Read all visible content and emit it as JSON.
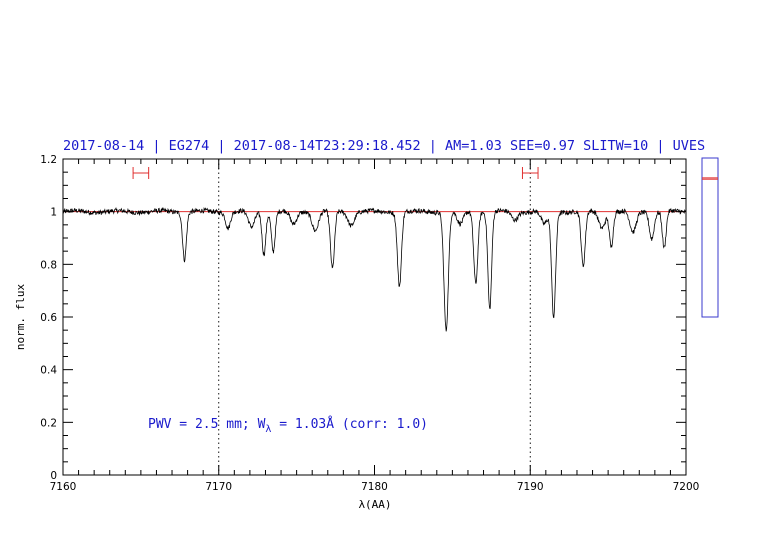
{
  "chart_data": {
    "type": "line",
    "title": "2017-08-14 | EG274 | 2017-08-14T23:29:18.452 | AM=1.03 SEE=0.97 SLITW=10 | UVES",
    "xlabel": "λ(AA)",
    "ylabel": "norm. flux",
    "xlim": [
      7160,
      7200
    ],
    "ylim": [
      0,
      1.2
    ],
    "xticks": [
      7160,
      7170,
      7180,
      7190,
      7200
    ],
    "xtick_labels": [
      "7160",
      "7170",
      "7180",
      "7190",
      "7200"
    ],
    "yticks": [
      0,
      0.2,
      0.4,
      0.6,
      0.8,
      1.0,
      1.2
    ],
    "ytick_labels": [
      "0",
      "0.2",
      "0.4",
      "0.6",
      "0.8",
      "1",
      "1.2"
    ],
    "grid": false,
    "vertical_dotted_lines": [
      7170,
      7190
    ],
    "continuum_level": 1.0,
    "continuum_intervals": [
      [
        7164.5,
        7165.5
      ],
      [
        7189.5,
        7190.5
      ]
    ],
    "absorption_lines": [
      {
        "x": 7167.8,
        "depth": 0.18,
        "width": 0.12
      },
      {
        "x": 7170.6,
        "depth": 0.06,
        "width": 0.15
      },
      {
        "x": 7172.1,
        "depth": 0.06,
        "width": 0.2
      },
      {
        "x": 7172.9,
        "depth": 0.16,
        "width": 0.12
      },
      {
        "x": 7173.5,
        "depth": 0.15,
        "width": 0.12
      },
      {
        "x": 7174.8,
        "depth": 0.05,
        "width": 0.2
      },
      {
        "x": 7176.2,
        "depth": 0.07,
        "width": 0.2
      },
      {
        "x": 7177.3,
        "depth": 0.22,
        "width": 0.13
      },
      {
        "x": 7178.5,
        "depth": 0.05,
        "width": 0.2
      },
      {
        "x": 7181.6,
        "depth": 0.28,
        "width": 0.13
      },
      {
        "x": 7184.6,
        "depth": 0.45,
        "width": 0.14
      },
      {
        "x": 7185.5,
        "depth": 0.05,
        "width": 0.2
      },
      {
        "x": 7186.5,
        "depth": 0.27,
        "width": 0.13
      },
      {
        "x": 7187.4,
        "depth": 0.37,
        "width": 0.12
      },
      {
        "x": 7189.0,
        "depth": 0.03,
        "width": 0.2
      },
      {
        "x": 7190.9,
        "depth": 0.05,
        "width": 0.2
      },
      {
        "x": 7191.5,
        "depth": 0.4,
        "width": 0.13
      },
      {
        "x": 7193.4,
        "depth": 0.21,
        "width": 0.13
      },
      {
        "x": 7194.6,
        "depth": 0.06,
        "width": 0.2
      },
      {
        "x": 7195.2,
        "depth": 0.13,
        "width": 0.12
      },
      {
        "x": 7196.6,
        "depth": 0.08,
        "width": 0.2
      },
      {
        "x": 7197.8,
        "depth": 0.1,
        "width": 0.15
      },
      {
        "x": 7198.6,
        "depth": 0.14,
        "width": 0.12
      }
    ],
    "annotation": {
      "main": "PWV = 2.5 mm; W",
      "sub": "λ",
      "rest": " = 1.03Å (corr: 1.0)"
    },
    "side_panel": {
      "ylim": [
        0,
        1.2
      ],
      "markers": [
        1.04,
        1.05
      ]
    },
    "colors": {
      "spectrum": "#000000",
      "continuum": "#e03030",
      "title": "#1a1acc",
      "annotation": "#1a1acc",
      "side_panel_border": "#3a3acc",
      "interval_marker": "#e03030"
    }
  }
}
